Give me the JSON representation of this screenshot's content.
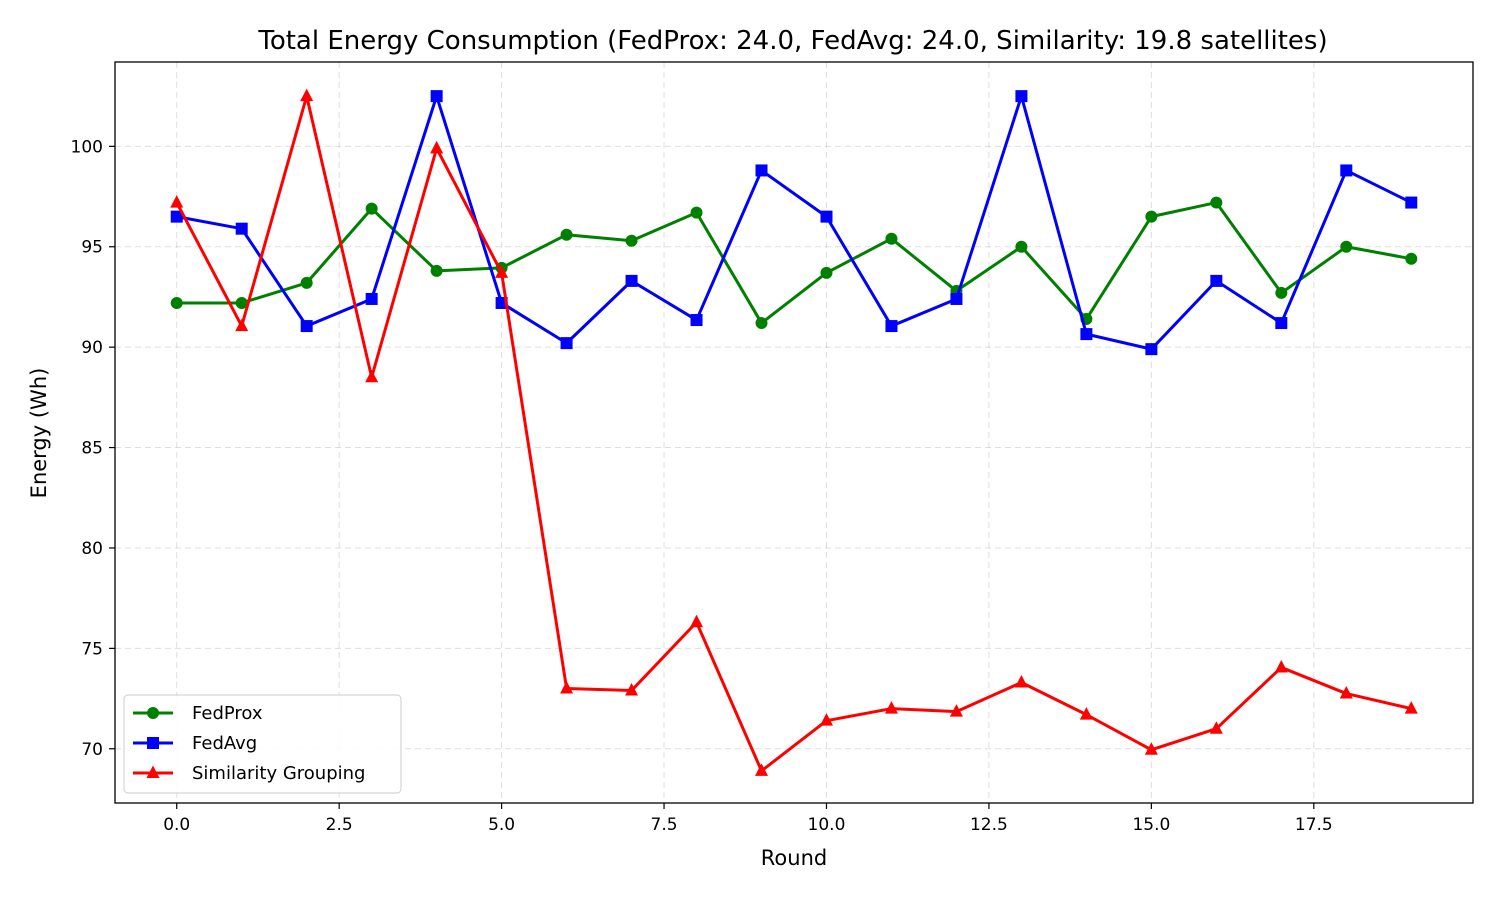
{
  "chart_data": {
    "type": "line",
    "title": "Total Energy Consumption (FedProx: 24.0, FedAvg: 24.0, Similarity: 19.8 satellites)",
    "xlabel": "Round",
    "ylabel": "Energy (Wh)",
    "xlim": [
      -0.95,
      19.95
    ],
    "ylim": [
      67.3,
      104.2
    ],
    "xticks": [
      0.0,
      2.5,
      5.0,
      7.5,
      10.0,
      12.5,
      15.0,
      17.5
    ],
    "xtick_labels": [
      "0.0",
      "2.5",
      "5.0",
      "7.5",
      "10.0",
      "12.5",
      "15.0",
      "17.5"
    ],
    "yticks": [
      70,
      75,
      80,
      85,
      90,
      95,
      100
    ],
    "ytick_labels": [
      "70",
      "75",
      "80",
      "85",
      "90",
      "95",
      "100"
    ],
    "grid": true,
    "legend_position": "lower-left",
    "x": [
      0,
      1,
      2,
      3,
      4,
      5,
      6,
      7,
      8,
      9,
      10,
      11,
      12,
      13,
      14,
      15,
      16,
      17,
      18,
      19
    ],
    "series": [
      {
        "name": "FedProx",
        "color": "#008000",
        "marker": "circle",
        "values": [
          92.2,
          92.2,
          93.2,
          96.9,
          93.8,
          93.95,
          95.6,
          95.3,
          96.7,
          91.2,
          93.7,
          95.4,
          92.8,
          95.0,
          91.4,
          96.5,
          97.2,
          92.7,
          95.0,
          94.4
        ]
      },
      {
        "name": "FedAvg",
        "color": "#0000ff",
        "marker": "square",
        "values": [
          96.5,
          95.9,
          91.05,
          92.4,
          102.5,
          92.2,
          90.2,
          93.3,
          91.35,
          98.8,
          96.5,
          91.05,
          92.4,
          102.5,
          90.65,
          89.9,
          93.3,
          91.2,
          98.8,
          97.2
        ]
      },
      {
        "name": "Similarity Grouping",
        "color": "#ff0000",
        "marker": "triangle",
        "values": [
          97.2,
          91.05,
          102.5,
          88.5,
          99.9,
          93.7,
          73.0,
          72.9,
          76.3,
          68.9,
          71.4,
          72.0,
          71.85,
          73.3,
          71.7,
          69.95,
          71.0,
          74.05,
          72.75,
          72.0
        ]
      }
    ]
  }
}
